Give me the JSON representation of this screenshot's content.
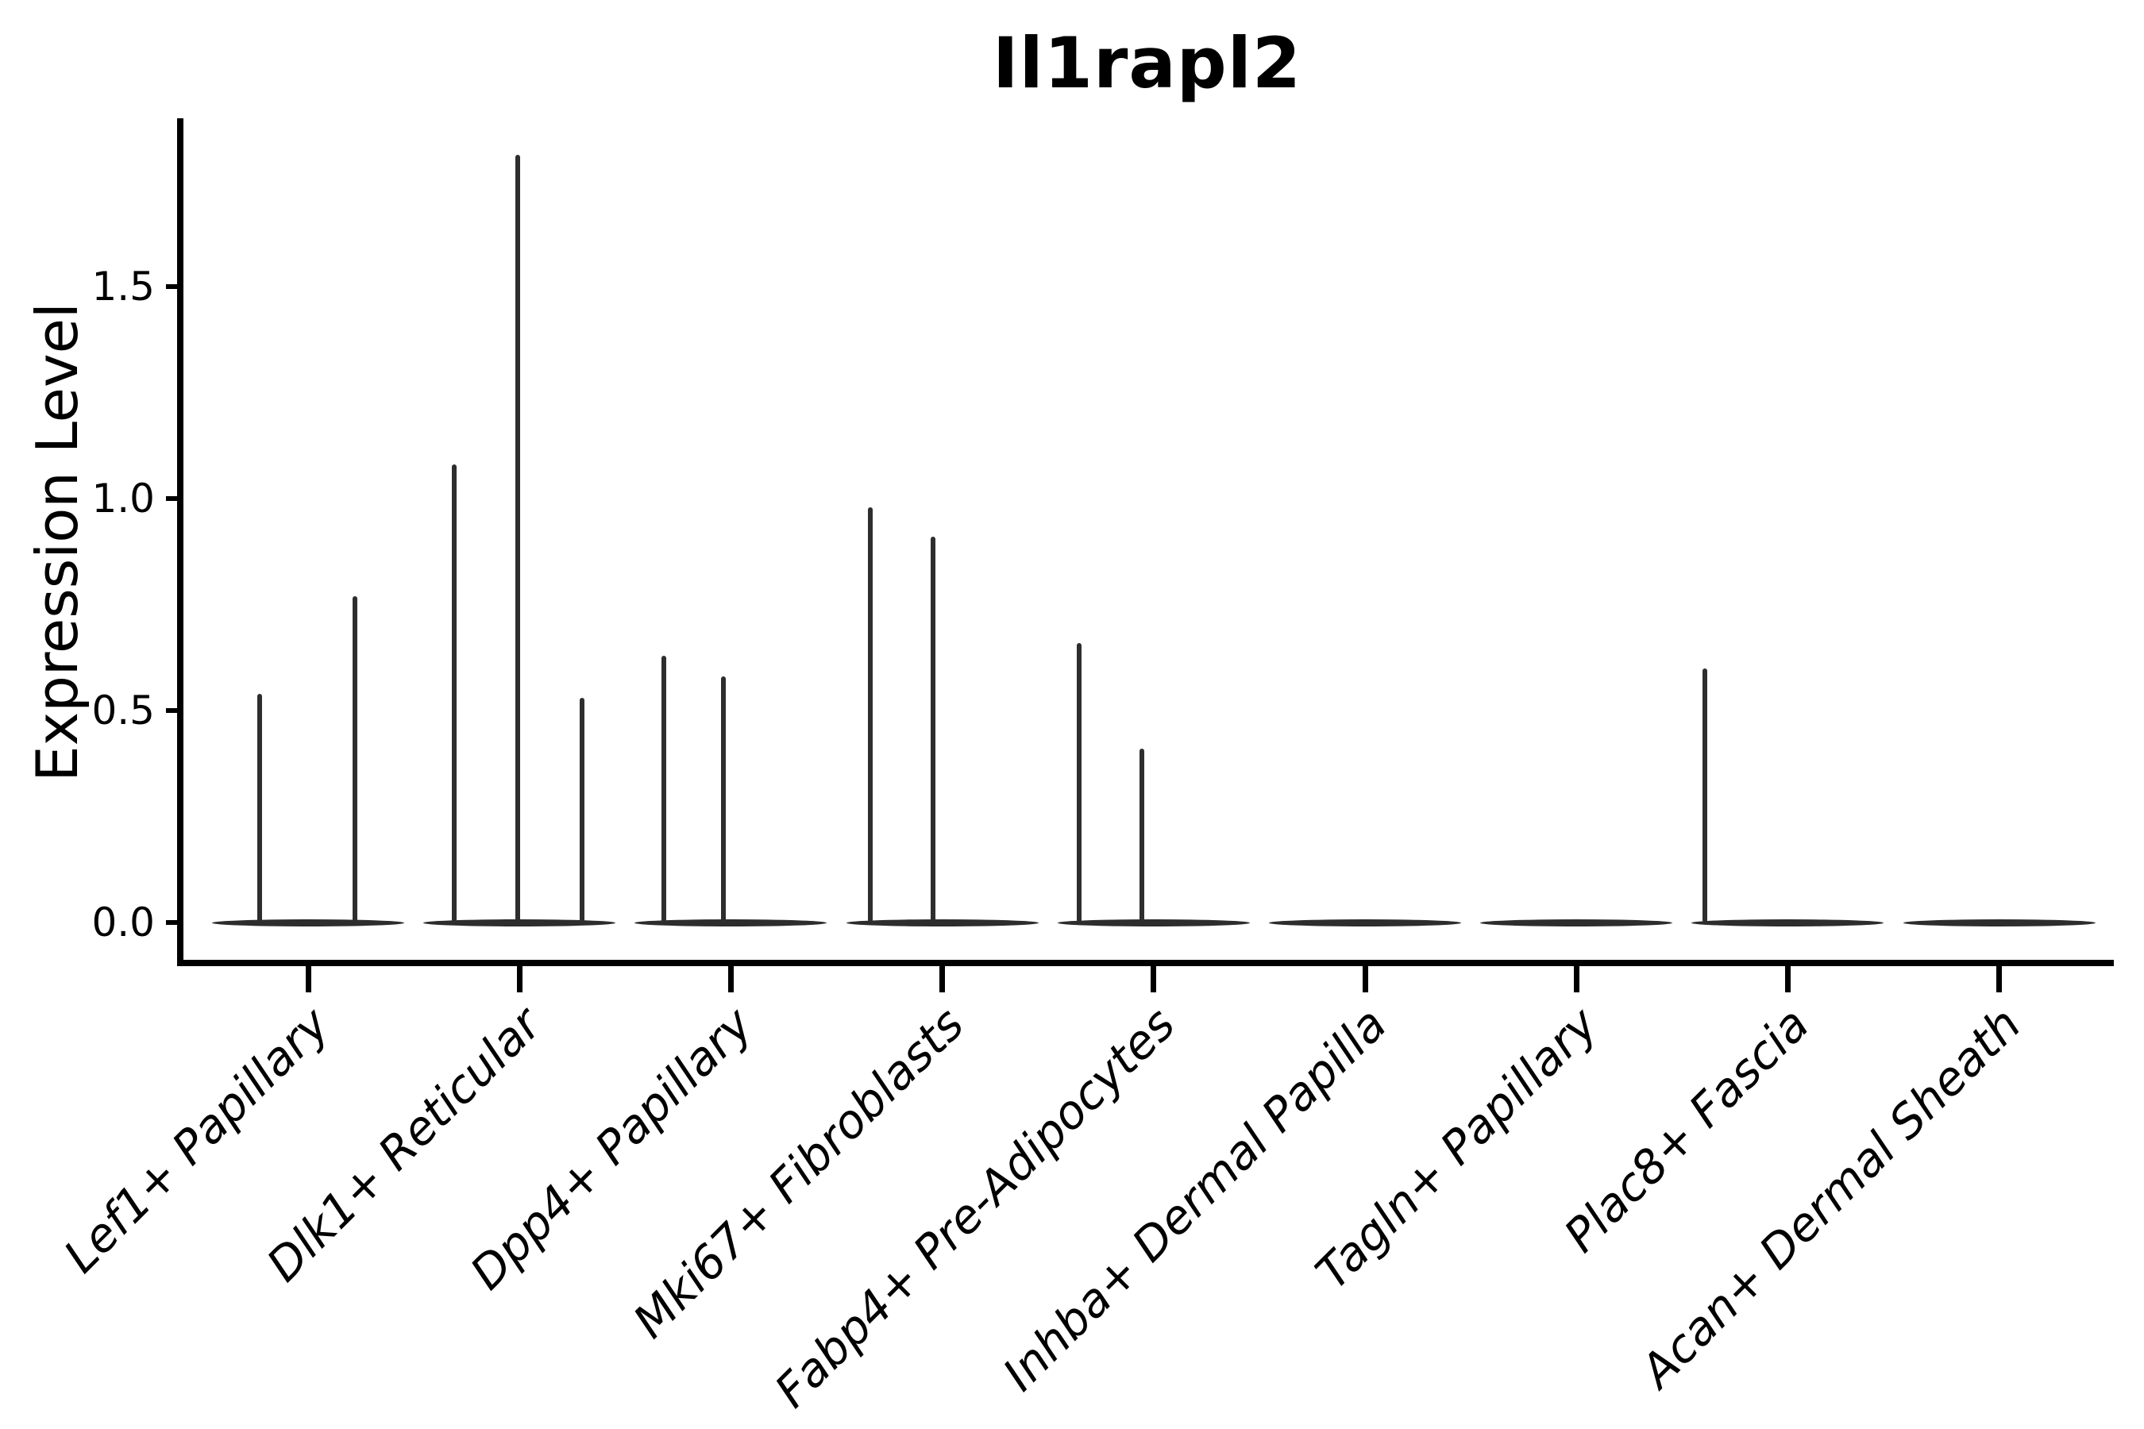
{
  "title": "Il1rapl2",
  "ylabel": "Expression Level",
  "chart_data": {
    "type": "violin",
    "title": "Il1rapl2",
    "xlabel": "",
    "ylabel": "Expression Level",
    "ylim": [
      0,
      1.9
    ],
    "yticks": [
      0.0,
      0.5,
      1.0,
      1.5
    ],
    "ytick_labels": [
      "0.0",
      "0.5",
      "1.0",
      "1.5"
    ],
    "grid": false,
    "legend": false,
    "categories": [
      "Lef1+ Papillary",
      "Dlk1+ Reticular",
      "Dpp4+ Papillary",
      "Mki67+ Fibroblasts",
      "Fabp4+ Pre-Adipocytes",
      "Inhba+ Dermal Papilla",
      "Tagln+ Papillary",
      "Plac8+ Fascia",
      "Acan+ Dermal Sheath"
    ],
    "series": [
      {
        "name": "Lef1+ Papillary",
        "points": [
          {
            "value": 0.54,
            "x_offset": -61
          },
          {
            "value": 0.77,
            "x_offset": 59
          }
        ]
      },
      {
        "name": "Dlk1+ Reticular",
        "points": [
          {
            "value": 1.08,
            "x_offset": -82
          },
          {
            "value": 1.81,
            "x_offset": -2
          },
          {
            "value": 0.53,
            "x_offset": 79
          }
        ]
      },
      {
        "name": "Dpp4+ Papillary",
        "points": [
          {
            "value": 0.63,
            "x_offset": -84
          },
          {
            "value": 0.58,
            "x_offset": -9
          }
        ]
      },
      {
        "name": "Mki67+ Fibroblasts",
        "points": [
          {
            "value": 0.98,
            "x_offset": -91
          },
          {
            "value": 0.91,
            "x_offset": -12
          }
        ]
      },
      {
        "name": "Fabp4+ Pre-Adipocytes",
        "points": [
          {
            "value": 0.66,
            "x_offset": -94
          },
          {
            "value": 0.41,
            "x_offset": -15
          }
        ]
      },
      {
        "name": "Inhba+ Dermal Papilla",
        "points": []
      },
      {
        "name": "Tagln+ Papillary",
        "points": []
      },
      {
        "name": "Plac8+ Fascia",
        "points": [
          {
            "value": 0.6,
            "x_offset": -104
          }
        ]
      },
      {
        "name": "Acan+ Dermal Sheath",
        "points": []
      }
    ],
    "colors": {
      "violin": "#2d2d2d",
      "axis": "#000000",
      "background": "#ffffff"
    }
  }
}
